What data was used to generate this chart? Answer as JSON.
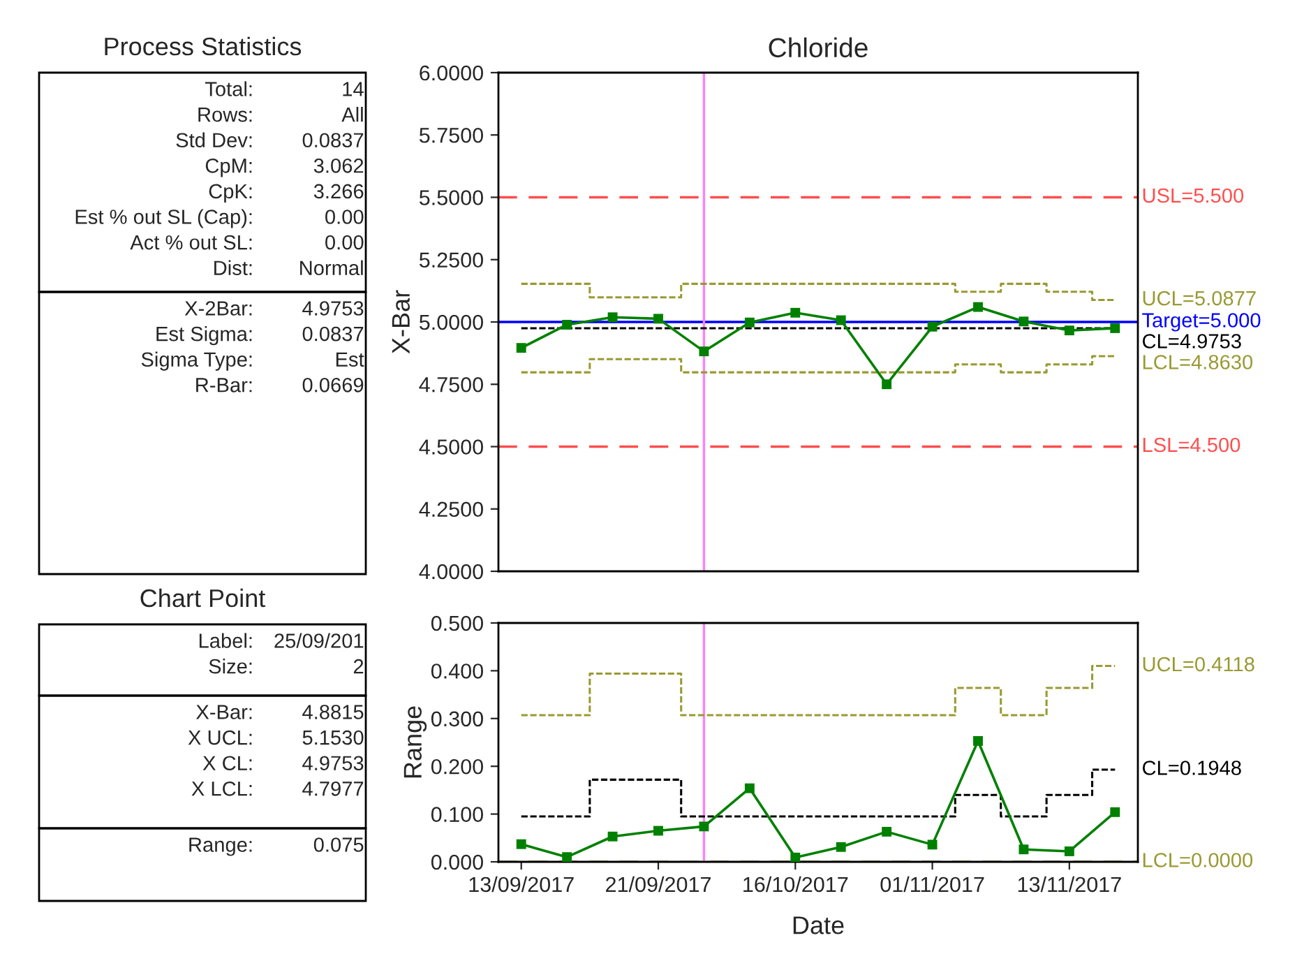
{
  "chart_data": [
    {
      "type": "other",
      "title": "Process Statistics",
      "annotations": [
        "Total:",
        "14",
        "Rows:",
        "All",
        "Std Dev:",
        "0.0837",
        "CpM:",
        "3.062",
        "CpK:",
        "3.266",
        "Est % out SL (Cap):",
        "0.00",
        "Act % out SL:",
        "0.00",
        "Dist:",
        "Normal"
      ]
    },
    {
      "type": "other",
      "annotations": [
        "X-2Bar:",
        "4.9753",
        "Est Sigma:",
        "0.0837",
        "Sigma Type:",
        "Est",
        "R-Bar:",
        "0.0669"
      ]
    },
    {
      "type": "other",
      "title": "Chart Point",
      "annotations": [
        "Label:",
        "25/09/201",
        "Size:",
        "2"
      ]
    },
    {
      "type": "other",
      "annotations": [
        "X-Bar:",
        "4.8815",
        "X UCL:",
        "5.1530",
        "X CL:",
        "4.9753",
        "X LCL:",
        "4.7977"
      ]
    },
    {
      "type": "other",
      "annotations": [
        "Range:",
        "0.075"
      ]
    },
    {
      "type": "line",
      "title": "Chloride",
      "ylabel": "X-Bar",
      "categories": [
        null,
        null,
        null,
        null,
        null,
        null,
        null,
        null,
        null,
        null,
        null,
        null,
        null,
        null
      ],
      "tick_labels": "y",
      "ylim": [
        4,
        6
      ],
      "yticks": [
        {
          "value": 4,
          "label": "4.0000"
        },
        {
          "value": 4.25,
          "label": "4.2500"
        },
        {
          "value": 4.5,
          "label": "4.5000"
        },
        {
          "value": 4.75,
          "label": "4.7500"
        },
        {
          "value": 5,
          "label": "5.0000"
        },
        {
          "value": 5.25,
          "label": "5.2500"
        },
        {
          "value": 5.5,
          "label": "5.5000"
        },
        {
          "value": 5.75,
          "label": "5.7500"
        },
        {
          "value": 6,
          "label": "6.0000"
        }
      ],
      "grid": false,
      "legend": false,
      "series": [
        {
          "type": "step",
          "name": "UCL=5.0877",
          "color": "#999933",
          "line_style": "dashed",
          "marker": "none",
          "values": [
            5.153,
            5.153,
            5.099,
            5.099,
            5.153,
            5.153,
            5.153,
            5.153,
            5.153,
            5.153,
            5.121,
            5.153,
            5.121,
            5.088
          ]
        },
        {
          "type": "step",
          "name": "CL=4.9753",
          "color": "#000000",
          "line_style": "dashed",
          "marker": "none",
          "values": [
            4.975,
            4.975,
            4.975,
            4.975,
            4.975,
            4.975,
            4.975,
            4.975,
            4.975,
            4.975,
            4.975,
            4.975,
            4.975,
            4.975
          ]
        },
        {
          "type": "step",
          "name": "LCL=4.8630",
          "color": "#999933",
          "line_style": "dashed",
          "marker": "none",
          "values": [
            4.798,
            4.798,
            4.851,
            4.851,
            4.798,
            4.798,
            4.798,
            4.798,
            4.798,
            4.798,
            4.83,
            4.798,
            4.83,
            4.863
          ]
        },
        {
          "type": "line",
          "color": "#008000",
          "line_style": "solid",
          "marker": "square",
          "values": [
            4.896,
            4.989,
            5.019,
            5.013,
            4.882,
            4.998,
            5.037,
            5.007,
            4.75,
            4.981,
            5.06,
            5.002,
            4.966,
            4.975
          ]
        }
      ],
      "ref_lines": [
        {
          "axis": "y",
          "value": 5.5,
          "label": "USL=5.500",
          "color": "#ff4d4d",
          "line_style": "dashed"
        },
        {
          "axis": "y",
          "value": 5.0,
          "label": "Target=5.000",
          "color": "#0000ff",
          "line_style": "solid"
        },
        {
          "axis": "y",
          "value": 4.5,
          "label": "LSL=4.500",
          "color": "#ff4d4d",
          "line_style": "dashed"
        }
      ]
    },
    {
      "type": "line",
      "ylabel": "Range",
      "xlabel": "Date",
      "categories": [
        "13/09/2017",
        null,
        null,
        "21/09/2017",
        null,
        null,
        "16/10/2017",
        null,
        null,
        "01/11/2017",
        null,
        null,
        "13/11/2017",
        null
      ],
      "ylim": [
        0,
        0.5
      ],
      "yticks": [
        {
          "value": 0,
          "label": "0.000"
        },
        {
          "value": 0.1,
          "label": "0.100"
        },
        {
          "value": 0.2,
          "label": "0.200"
        },
        {
          "value": 0.3,
          "label": "0.300"
        },
        {
          "value": 0.4,
          "label": "0.400"
        },
        {
          "value": 0.5,
          "label": "0.500"
        }
      ],
      "grid": false,
      "legend": false,
      "series": [
        {
          "type": "step",
          "name": "UCL=0.4118",
          "color": "#999933",
          "line_style": "dashed",
          "marker": "none",
          "values": [
            0.307,
            0.307,
            0.394,
            0.394,
            0.307,
            0.307,
            0.307,
            0.307,
            0.307,
            0.307,
            0.364,
            0.307,
            0.364,
            0.41
          ]
        },
        {
          "type": "step",
          "name": "CL=0.1948",
          "color": "#000000",
          "line_style": "dashed",
          "marker": "none",
          "values": [
            0.095,
            0.095,
            0.172,
            0.172,
            0.095,
            0.095,
            0.095,
            0.095,
            0.095,
            0.095,
            0.14,
            0.095,
            0.14,
            0.193
          ]
        },
        {
          "type": "line",
          "color": "#008000",
          "line_style": "solid",
          "marker": "square",
          "values": [
            0.037,
            0.01,
            0.053,
            0.065,
            0.074,
            0.154,
            0.009,
            0.031,
            0.063,
            0.036,
            0.253,
            0.026,
            0.022,
            0.104
          ]
        }
      ],
      "ref_lines": [
        {
          "axis": "y",
          "value": 0,
          "label": "LCL=0.0000",
          "color": "#999933",
          "line_style": "dashed"
        }
      ]
    }
  ]
}
